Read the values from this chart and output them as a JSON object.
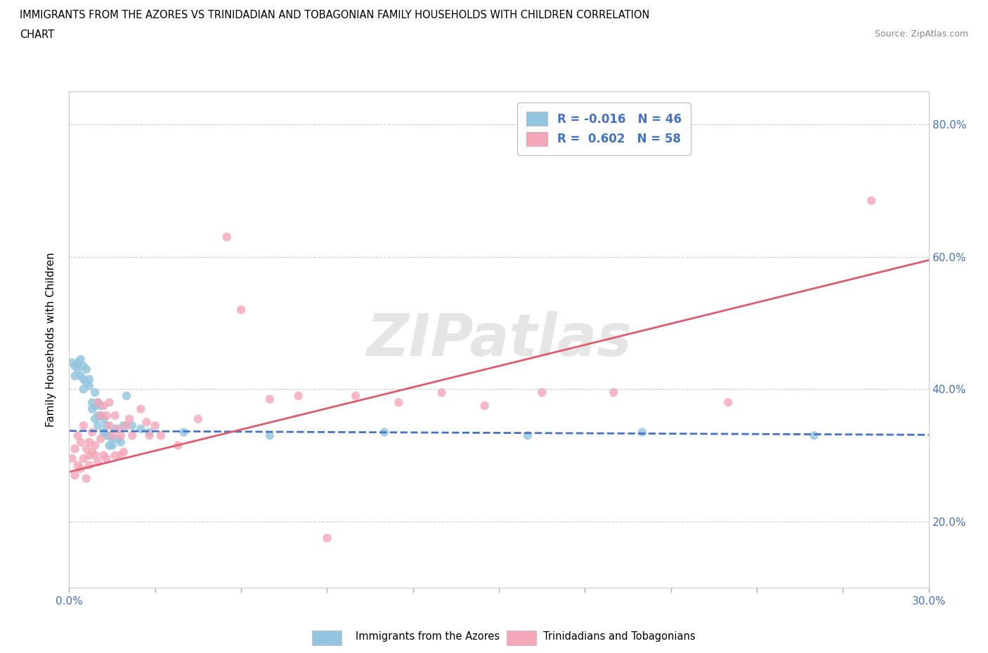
{
  "title_line1": "IMMIGRANTS FROM THE AZORES VS TRINIDADIAN AND TOBAGONIAN FAMILY HOUSEHOLDS WITH CHILDREN CORRELATION",
  "title_line2": "CHART",
  "source_text": "Source: ZipAtlas.com",
  "ylabel": "Family Households with Children",
  "y_tick_labels": [
    "20.0%",
    "40.0%",
    "60.0%",
    "80.0%"
  ],
  "y_tick_values": [
    0.2,
    0.4,
    0.6,
    0.8
  ],
  "x_ticks": [
    0.0,
    0.03,
    0.06,
    0.09,
    0.12,
    0.15,
    0.18,
    0.21,
    0.24,
    0.27,
    0.3
  ],
  "blue_label": "Immigrants from the Azores",
  "pink_label": "Trinidadians and Tobagonians",
  "blue_color": "#92c5de",
  "pink_color": "#f4a7b9",
  "trend_blue_color": "#4472c4",
  "trend_pink_color": "#e05a6e",
  "legend_R1": "R = -0.016",
  "legend_N1": "N = 46",
  "legend_R2": "R =  0.602",
  "legend_N2": "N = 58",
  "watermark_text": "ZIPatlas",
  "blue_scatter": [
    [
      0.001,
      0.44
    ],
    [
      0.002,
      0.435
    ],
    [
      0.002,
      0.42
    ],
    [
      0.003,
      0.44
    ],
    [
      0.003,
      0.43
    ],
    [
      0.004,
      0.445
    ],
    [
      0.004,
      0.42
    ],
    [
      0.005,
      0.415
    ],
    [
      0.005,
      0.435
    ],
    [
      0.005,
      0.4
    ],
    [
      0.006,
      0.43
    ],
    [
      0.006,
      0.41
    ],
    [
      0.007,
      0.415
    ],
    [
      0.007,
      0.405
    ],
    [
      0.008,
      0.37
    ],
    [
      0.008,
      0.38
    ],
    [
      0.009,
      0.395
    ],
    [
      0.009,
      0.355
    ],
    [
      0.009,
      0.375
    ],
    [
      0.01,
      0.36
    ],
    [
      0.01,
      0.38
    ],
    [
      0.01,
      0.345
    ],
    [
      0.011,
      0.375
    ],
    [
      0.011,
      0.36
    ],
    [
      0.012,
      0.335
    ],
    [
      0.012,
      0.355
    ],
    [
      0.013,
      0.345
    ],
    [
      0.013,
      0.33
    ],
    [
      0.014,
      0.315
    ],
    [
      0.014,
      0.33
    ],
    [
      0.015,
      0.325
    ],
    [
      0.015,
      0.315
    ],
    [
      0.016,
      0.34
    ],
    [
      0.017,
      0.325
    ],
    [
      0.018,
      0.32
    ],
    [
      0.019,
      0.345
    ],
    [
      0.02,
      0.39
    ],
    [
      0.022,
      0.345
    ],
    [
      0.025,
      0.34
    ],
    [
      0.028,
      0.335
    ],
    [
      0.04,
      0.335
    ],
    [
      0.07,
      0.33
    ],
    [
      0.11,
      0.335
    ],
    [
      0.16,
      0.33
    ],
    [
      0.2,
      0.335
    ],
    [
      0.26,
      0.33
    ]
  ],
  "pink_scatter": [
    [
      0.001,
      0.295
    ],
    [
      0.002,
      0.31
    ],
    [
      0.002,
      0.27
    ],
    [
      0.003,
      0.33
    ],
    [
      0.003,
      0.285
    ],
    [
      0.004,
      0.32
    ],
    [
      0.004,
      0.28
    ],
    [
      0.005,
      0.295
    ],
    [
      0.005,
      0.345
    ],
    [
      0.006,
      0.31
    ],
    [
      0.006,
      0.265
    ],
    [
      0.007,
      0.32
    ],
    [
      0.007,
      0.3
    ],
    [
      0.007,
      0.285
    ],
    [
      0.008,
      0.335
    ],
    [
      0.008,
      0.305
    ],
    [
      0.009,
      0.315
    ],
    [
      0.009,
      0.3
    ],
    [
      0.01,
      0.29
    ],
    [
      0.01,
      0.38
    ],
    [
      0.011,
      0.36
    ],
    [
      0.011,
      0.325
    ],
    [
      0.012,
      0.375
    ],
    [
      0.012,
      0.3
    ],
    [
      0.013,
      0.36
    ],
    [
      0.013,
      0.295
    ],
    [
      0.014,
      0.38
    ],
    [
      0.014,
      0.345
    ],
    [
      0.015,
      0.33
    ],
    [
      0.016,
      0.36
    ],
    [
      0.016,
      0.3
    ],
    [
      0.017,
      0.34
    ],
    [
      0.018,
      0.33
    ],
    [
      0.018,
      0.3
    ],
    [
      0.019,
      0.305
    ],
    [
      0.02,
      0.345
    ],
    [
      0.021,
      0.355
    ],
    [
      0.022,
      0.33
    ],
    [
      0.025,
      0.37
    ],
    [
      0.027,
      0.35
    ],
    [
      0.028,
      0.33
    ],
    [
      0.03,
      0.345
    ],
    [
      0.032,
      0.33
    ],
    [
      0.038,
      0.315
    ],
    [
      0.045,
      0.355
    ],
    [
      0.055,
      0.63
    ],
    [
      0.06,
      0.52
    ],
    [
      0.07,
      0.385
    ],
    [
      0.08,
      0.39
    ],
    [
      0.09,
      0.175
    ],
    [
      0.1,
      0.39
    ],
    [
      0.115,
      0.38
    ],
    [
      0.13,
      0.395
    ],
    [
      0.145,
      0.375
    ],
    [
      0.165,
      0.395
    ],
    [
      0.19,
      0.395
    ],
    [
      0.23,
      0.38
    ],
    [
      0.28,
      0.685
    ]
  ],
  "blue_trend_x": [
    0.0,
    0.3
  ],
  "blue_trend_y": [
    0.337,
    0.331
  ],
  "pink_trend_x": [
    0.0,
    0.3
  ],
  "pink_trend_y": [
    0.275,
    0.595
  ],
  "xlim": [
    0.0,
    0.3
  ],
  "ylim": [
    0.1,
    0.85
  ],
  "figsize": [
    14.06,
    9.3
  ],
  "dpi": 100
}
